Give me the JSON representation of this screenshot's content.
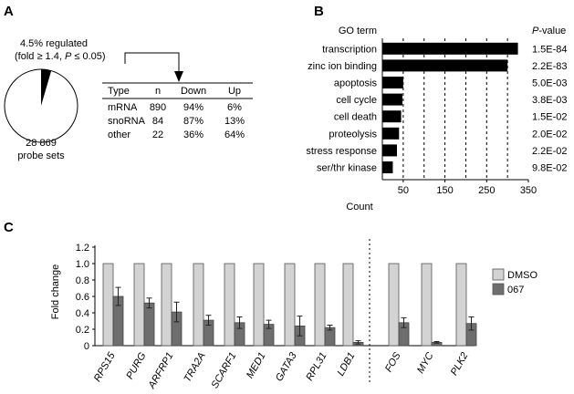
{
  "panelA": {
    "letter": "A",
    "regulated_line1": "4.5% regulated",
    "regulated_line2_pre": "(fold ≥ 1.4, ",
    "regulated_line2_P": "P",
    "regulated_line2_post": " ≤ 0.05)",
    "pie_count": "28 869",
    "pie_label": "probe sets",
    "regulated_fraction_percent": 4.5,
    "table": {
      "headers": [
        "Type",
        "n",
        "Down",
        "Up"
      ],
      "rows": [
        [
          "mRNA",
          "890",
          "94%",
          "6%"
        ],
        [
          "snoRNA",
          "84",
          "87%",
          "13%"
        ],
        [
          "other",
          "22",
          "36%",
          "64%"
        ]
      ]
    }
  },
  "panelB": {
    "letter": "B",
    "header_left": "GO term",
    "header_right_italic": "P",
    "header_right_rest": "-value",
    "xlabel": "Count",
    "xticks": [
      50,
      150,
      250,
      350
    ],
    "xlim": [
      0,
      350
    ],
    "terms": [
      "transcription",
      "zinc ion binding",
      "apoptosis",
      "cell cycle",
      "cell death",
      "proteolysis",
      "stress response",
      "ser/thr kinase"
    ],
    "pvalues": [
      "1.5E-84",
      "2.2E-83",
      "5.0E-03",
      "3.8E-03",
      "1.5E-02",
      "2.0E-02",
      "2.2E-02",
      "9.8E-02"
    ]
  },
  "panelC": {
    "letter": "C",
    "ylabel": "Fold change"
  },
  "chart_data": [
    {
      "type": "bar",
      "title": "",
      "categories": [
        "transcription",
        "zinc ion binding",
        "apoptosis",
        "cell cycle",
        "cell death",
        "proteolysis",
        "stress response",
        "ser/thr kinase"
      ],
      "values": [
        325,
        300,
        50,
        48,
        45,
        40,
        35,
        25
      ],
      "xlabel": "Count",
      "xlim": [
        0,
        350
      ],
      "orientation": "horizontal",
      "grid": "dashed vertical at 50, 100, 150, 200, 250, 300"
    },
    {
      "type": "bar",
      "categories": [
        "RPS15",
        "PURG",
        "ARFRP1",
        "TRA2A",
        "SCARF1",
        "MED1",
        "GATA3",
        "RPL31",
        "LDB1",
        "FOS",
        "MYC",
        "PLK2"
      ],
      "series": [
        {
          "name": "DMSO",
          "color": "#d3d3d3",
          "values": [
            1,
            1,
            1,
            1,
            1,
            1,
            1,
            1,
            1,
            1,
            1,
            1
          ]
        },
        {
          "name": "067",
          "color": "#6e6e6e",
          "values": [
            0.6,
            0.52,
            0.41,
            0.31,
            0.28,
            0.26,
            0.24,
            0.22,
            0.04,
            0.28,
            0.04,
            0.27
          ],
          "errors": [
            0.11,
            0.06,
            0.12,
            0.06,
            0.07,
            0.05,
            0.12,
            0.03,
            0.02,
            0.06,
            0.01,
            0.08
          ]
        }
      ],
      "ylabel": "Fold change",
      "ylim": [
        0,
        1.2
      ],
      "yticks": [
        "0",
        "0.2",
        "0.4",
        "0.6",
        "0.8",
        "1.0",
        "1.2"
      ],
      "legend": "right",
      "separator_after": "LDB1"
    }
  ]
}
